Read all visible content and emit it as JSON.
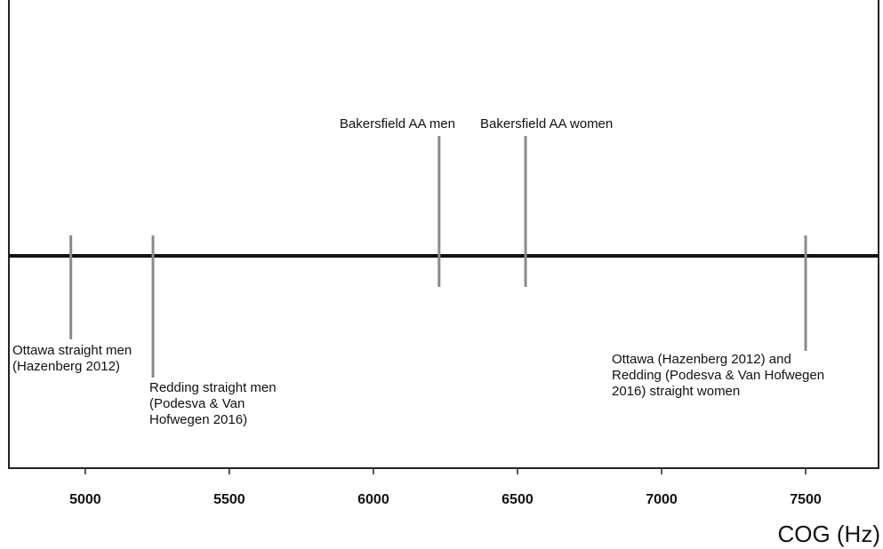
{
  "chart_data": {
    "type": "strip",
    "x_label": "COG (Hz)",
    "xlim": [
      4735,
      7753
    ],
    "xticks": [
      5000,
      5500,
      6000,
      6500,
      7000,
      7500
    ],
    "x": [
      4950,
      5235,
      6228,
      6528,
      7500
    ],
    "labels": [
      [
        "Ottawa straight men",
        "(Hazenberg 2012)"
      ],
      [
        "Redding straight men",
        "(Podesva & Van",
        "Hofwegen 2016)"
      ],
      [
        "Bakersfield AA men"
      ],
      [
        "Bakersfield AA women"
      ],
      [
        "Ottawa (Hazenberg 2012) and",
        "Redding (Podesva & Van Hofwegen",
        "2016) straight women"
      ]
    ],
    "color": "#8a8a8a"
  }
}
